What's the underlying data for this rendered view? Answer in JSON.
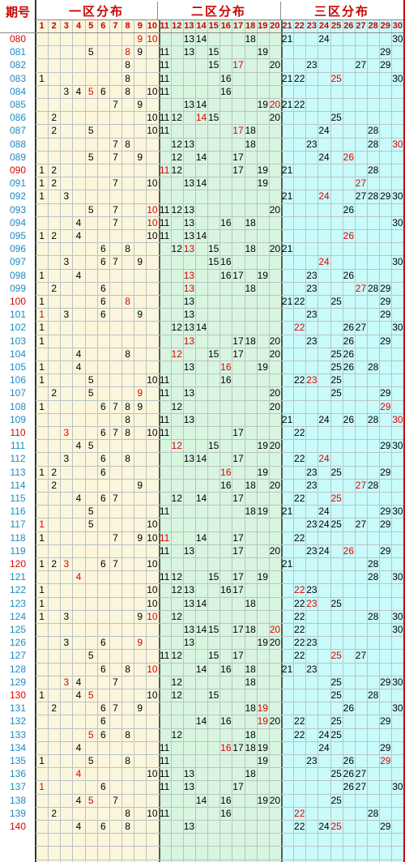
{
  "header": {
    "period_title": "期号",
    "zones": [
      "一区分布",
      "二区分布",
      "三区分布"
    ]
  },
  "colors": {
    "zone1_bg": "#fbf6dc",
    "zone2_bg": "#d8f5e0",
    "zone3_bg": "#c9fbfb",
    "accent_red": "#e00000",
    "period_blue": "#1e8bc0",
    "grid_line": "#b9c4c4"
  },
  "numbers": [
    "1",
    "2",
    "3",
    "4",
    "5",
    "6",
    "7",
    "8",
    "9",
    "10",
    "11",
    "12",
    "13",
    "14",
    "15",
    "16",
    "17",
    "18",
    "19",
    "20",
    "21",
    "22",
    "23",
    "24",
    "25",
    "26",
    "27",
    "28",
    "29",
    "30"
  ],
  "rows": [
    {
      "period": "080",
      "red": true,
      "nums": [
        [
          9,
          1
        ],
        [
          10,
          1
        ],
        13,
        14,
        18,
        21,
        24,
        30
      ]
    },
    {
      "period": "081",
      "red": false,
      "nums": [
        5,
        [
          8,
          1
        ],
        9,
        11,
        13,
        15,
        19,
        29
      ]
    },
    {
      "period": "082",
      "red": false,
      "nums": [
        8,
        11,
        15,
        [
          17,
          1
        ],
        20,
        23,
        27,
        29
      ]
    },
    {
      "period": "083",
      "red": false,
      "nums": [
        1,
        8,
        11,
        16,
        21,
        22,
        [
          25,
          1
        ],
        30
      ]
    },
    {
      "period": "084",
      "red": false,
      "nums": [
        3,
        4,
        [
          5,
          1
        ],
        6,
        8,
        10,
        11,
        16
      ]
    },
    {
      "period": "085",
      "red": false,
      "nums": [
        7,
        9,
        13,
        14,
        19,
        [
          20,
          1
        ],
        21,
        22
      ]
    },
    {
      "period": "086",
      "red": false,
      "nums": [
        2,
        10,
        11,
        12,
        [
          14,
          1
        ],
        15,
        20,
        25
      ]
    },
    {
      "period": "087",
      "red": false,
      "nums": [
        2,
        5,
        10,
        11,
        [
          17,
          1
        ],
        18,
        24,
        28
      ]
    },
    {
      "period": "088",
      "red": false,
      "nums": [
        7,
        8,
        12,
        13,
        18,
        23,
        28,
        [
          30,
          1
        ]
      ]
    },
    {
      "period": "089",
      "red": false,
      "nums": [
        5,
        7,
        9,
        12,
        14,
        17,
        24,
        [
          26,
          1
        ]
      ]
    },
    {
      "period": "090",
      "red": true,
      "nums": [
        1,
        2,
        [
          11,
          1
        ],
        12,
        17,
        19,
        21,
        28
      ]
    },
    {
      "period": "091",
      "red": false,
      "nums": [
        1,
        2,
        7,
        10,
        13,
        14,
        19,
        [
          27,
          1
        ]
      ]
    },
    {
      "period": "092",
      "red": false,
      "nums": [
        1,
        3,
        21,
        [
          24,
          1
        ],
        27,
        28,
        29,
        30
      ]
    },
    {
      "period": "093",
      "red": false,
      "nums": [
        5,
        7,
        [
          10,
          1
        ],
        11,
        12,
        13,
        20,
        26
      ]
    },
    {
      "period": "094",
      "red": false,
      "nums": [
        4,
        7,
        [
          10,
          1
        ],
        11,
        13,
        16,
        18,
        30
      ]
    },
    {
      "period": "095",
      "red": false,
      "nums": [
        1,
        2,
        4,
        10,
        11,
        13,
        14,
        [
          26,
          1
        ]
      ]
    },
    {
      "period": "096",
      "red": false,
      "nums": [
        6,
        8,
        12,
        [
          13,
          1
        ],
        15,
        18,
        20,
        21
      ]
    },
    {
      "period": "097",
      "red": false,
      "nums": [
        3,
        6,
        7,
        9,
        15,
        16,
        [
          24,
          1
        ],
        30
      ]
    },
    {
      "period": "098",
      "red": false,
      "nums": [
        1,
        4,
        [
          13,
          1
        ],
        16,
        17,
        19,
        23,
        26
      ]
    },
    {
      "period": "099",
      "red": false,
      "nums": [
        2,
        6,
        [
          13,
          1
        ],
        18,
        23,
        [
          27,
          1
        ],
        28,
        29
      ]
    },
    {
      "period": "100",
      "red": true,
      "nums": [
        1,
        6,
        [
          8,
          1
        ],
        13,
        21,
        22,
        25,
        29
      ]
    },
    {
      "period": "101",
      "red": false,
      "nums": [
        [
          1,
          1
        ],
        3,
        6,
        9,
        13,
        23,
        29
      ]
    },
    {
      "period": "102",
      "red": false,
      "nums": [
        1,
        12,
        13,
        14,
        [
          22,
          1
        ],
        26,
        27,
        30
      ]
    },
    {
      "period": "103",
      "red": false,
      "nums": [
        1,
        [
          13,
          1
        ],
        17,
        18,
        20,
        23,
        26,
        29
      ]
    },
    {
      "period": "104",
      "red": false,
      "nums": [
        4,
        8,
        [
          12,
          1
        ],
        15,
        17,
        20,
        25,
        26
      ]
    },
    {
      "period": "105",
      "red": false,
      "nums": [
        1,
        4,
        13,
        [
          16,
          1
        ],
        19,
        25,
        26,
        28
      ]
    },
    {
      "period": "106",
      "red": false,
      "nums": [
        1,
        5,
        10,
        11,
        16,
        22,
        [
          23,
          1
        ],
        25
      ]
    },
    {
      "period": "107",
      "red": false,
      "nums": [
        2,
        5,
        [
          9,
          1
        ],
        11,
        13,
        20,
        25,
        29
      ]
    },
    {
      "period": "108",
      "red": false,
      "nums": [
        1,
        6,
        7,
        8,
        9,
        12,
        20,
        [
          29,
          1
        ]
      ]
    },
    {
      "period": "109",
      "red": false,
      "nums": [
        8,
        11,
        13,
        21,
        24,
        26,
        28,
        [
          30,
          1
        ]
      ]
    },
    {
      "period": "110",
      "red": true,
      "nums": [
        [
          3,
          1
        ],
        6,
        7,
        8,
        10,
        11,
        17,
        22
      ]
    },
    {
      "period": "111",
      "red": false,
      "nums": [
        4,
        5,
        [
          12,
          1
        ],
        15,
        19,
        20,
        29,
        30
      ]
    },
    {
      "period": "112",
      "red": false,
      "nums": [
        3,
        6,
        8,
        13,
        14,
        17,
        22,
        [
          24,
          1
        ]
      ]
    },
    {
      "period": "113",
      "red": false,
      "nums": [
        1,
        2,
        6,
        [
          16,
          1
        ],
        19,
        23,
        25,
        29
      ]
    },
    {
      "period": "114",
      "red": false,
      "nums": [
        2,
        9,
        16,
        18,
        20,
        23,
        [
          27,
          1
        ],
        28
      ]
    },
    {
      "period": "115",
      "red": false,
      "nums": [
        4,
        6,
        7,
        12,
        14,
        17,
        22,
        [
          25,
          1
        ]
      ]
    },
    {
      "period": "116",
      "red": false,
      "nums": [
        5,
        11,
        18,
        19,
        21,
        24,
        29,
        30
      ]
    },
    {
      "period": "117",
      "red": false,
      "nums": [
        [
          1,
          1
        ],
        5,
        10,
        23,
        24,
        25,
        27,
        29
      ]
    },
    {
      "period": "118",
      "red": false,
      "nums": [
        1,
        7,
        9,
        10,
        [
          11,
          1
        ],
        14,
        17,
        22
      ]
    },
    {
      "period": "119",
      "red": false,
      "nums": [
        11,
        13,
        17,
        20,
        23,
        24,
        [
          26,
          1
        ],
        29
      ]
    },
    {
      "period": "120",
      "red": true,
      "nums": [
        1,
        2,
        [
          3,
          1
        ],
        6,
        7,
        10,
        21,
        28
      ]
    },
    {
      "period": "121",
      "red": false,
      "nums": [
        [
          4,
          1
        ],
        11,
        12,
        15,
        17,
        19,
        28,
        30
      ]
    },
    {
      "period": "122",
      "red": false,
      "nums": [
        1,
        10,
        12,
        13,
        16,
        17,
        [
          22,
          1
        ],
        23
      ]
    },
    {
      "period": "123",
      "red": false,
      "nums": [
        1,
        10,
        13,
        14,
        18,
        22,
        [
          23,
          1
        ],
        25
      ]
    },
    {
      "period": "124",
      "red": false,
      "nums": [
        1,
        3,
        9,
        [
          10,
          1
        ],
        12,
        22,
        28,
        30
      ]
    },
    {
      "period": "125",
      "red": false,
      "nums": [
        13,
        14,
        15,
        17,
        18,
        [
          20,
          1
        ],
        22,
        30
      ]
    },
    {
      "period": "126",
      "red": false,
      "nums": [
        3,
        6,
        [
          9,
          1
        ],
        13,
        19,
        20,
        22,
        23
      ]
    },
    {
      "period": "127",
      "red": false,
      "nums": [
        5,
        11,
        12,
        15,
        17,
        22,
        [
          25,
          1
        ],
        27
      ]
    },
    {
      "period": "128",
      "red": false,
      "nums": [
        6,
        8,
        [
          10,
          1
        ],
        14,
        16,
        18,
        21,
        23
      ]
    },
    {
      "period": "129",
      "red": false,
      "nums": [
        [
          3,
          1
        ],
        4,
        7,
        12,
        18,
        25,
        29,
        30
      ]
    },
    {
      "period": "130",
      "red": true,
      "nums": [
        1,
        4,
        [
          5,
          1
        ],
        10,
        12,
        15,
        25,
        28
      ]
    },
    {
      "period": "131",
      "red": false,
      "nums": [
        2,
        6,
        7,
        9,
        18,
        [
          19,
          1
        ],
        26,
        30
      ]
    },
    {
      "period": "132",
      "red": false,
      "nums": [
        6,
        14,
        16,
        [
          19,
          1
        ],
        20,
        22,
        25,
        29
      ]
    },
    {
      "period": "133",
      "red": false,
      "nums": [
        [
          5,
          1
        ],
        6,
        8,
        12,
        18,
        22,
        24,
        25
      ]
    },
    {
      "period": "134",
      "red": false,
      "nums": [
        4,
        11,
        [
          16,
          1
        ],
        17,
        18,
        19,
        24,
        29
      ]
    },
    {
      "period": "135",
      "red": false,
      "nums": [
        1,
        5,
        8,
        11,
        19,
        23,
        26,
        [
          29,
          1
        ]
      ]
    },
    {
      "period": "136",
      "red": false,
      "nums": [
        [
          4,
          1
        ],
        10,
        11,
        13,
        18,
        25,
        26,
        27
      ]
    },
    {
      "period": "137",
      "red": false,
      "nums": [
        [
          1,
          1
        ],
        6,
        11,
        13,
        17,
        26,
        27,
        30
      ]
    },
    {
      "period": "138",
      "red": false,
      "nums": [
        4,
        [
          5,
          1
        ],
        7,
        14,
        16,
        19,
        20,
        25
      ]
    },
    {
      "period": "139",
      "red": false,
      "nums": [
        2,
        8,
        10,
        11,
        16,
        [
          22,
          1
        ],
        28
      ]
    },
    {
      "period": "140",
      "red": true,
      "nums": [
        4,
        6,
        8,
        13,
        22,
        24,
        [
          25,
          1
        ],
        29
      ]
    }
  ]
}
